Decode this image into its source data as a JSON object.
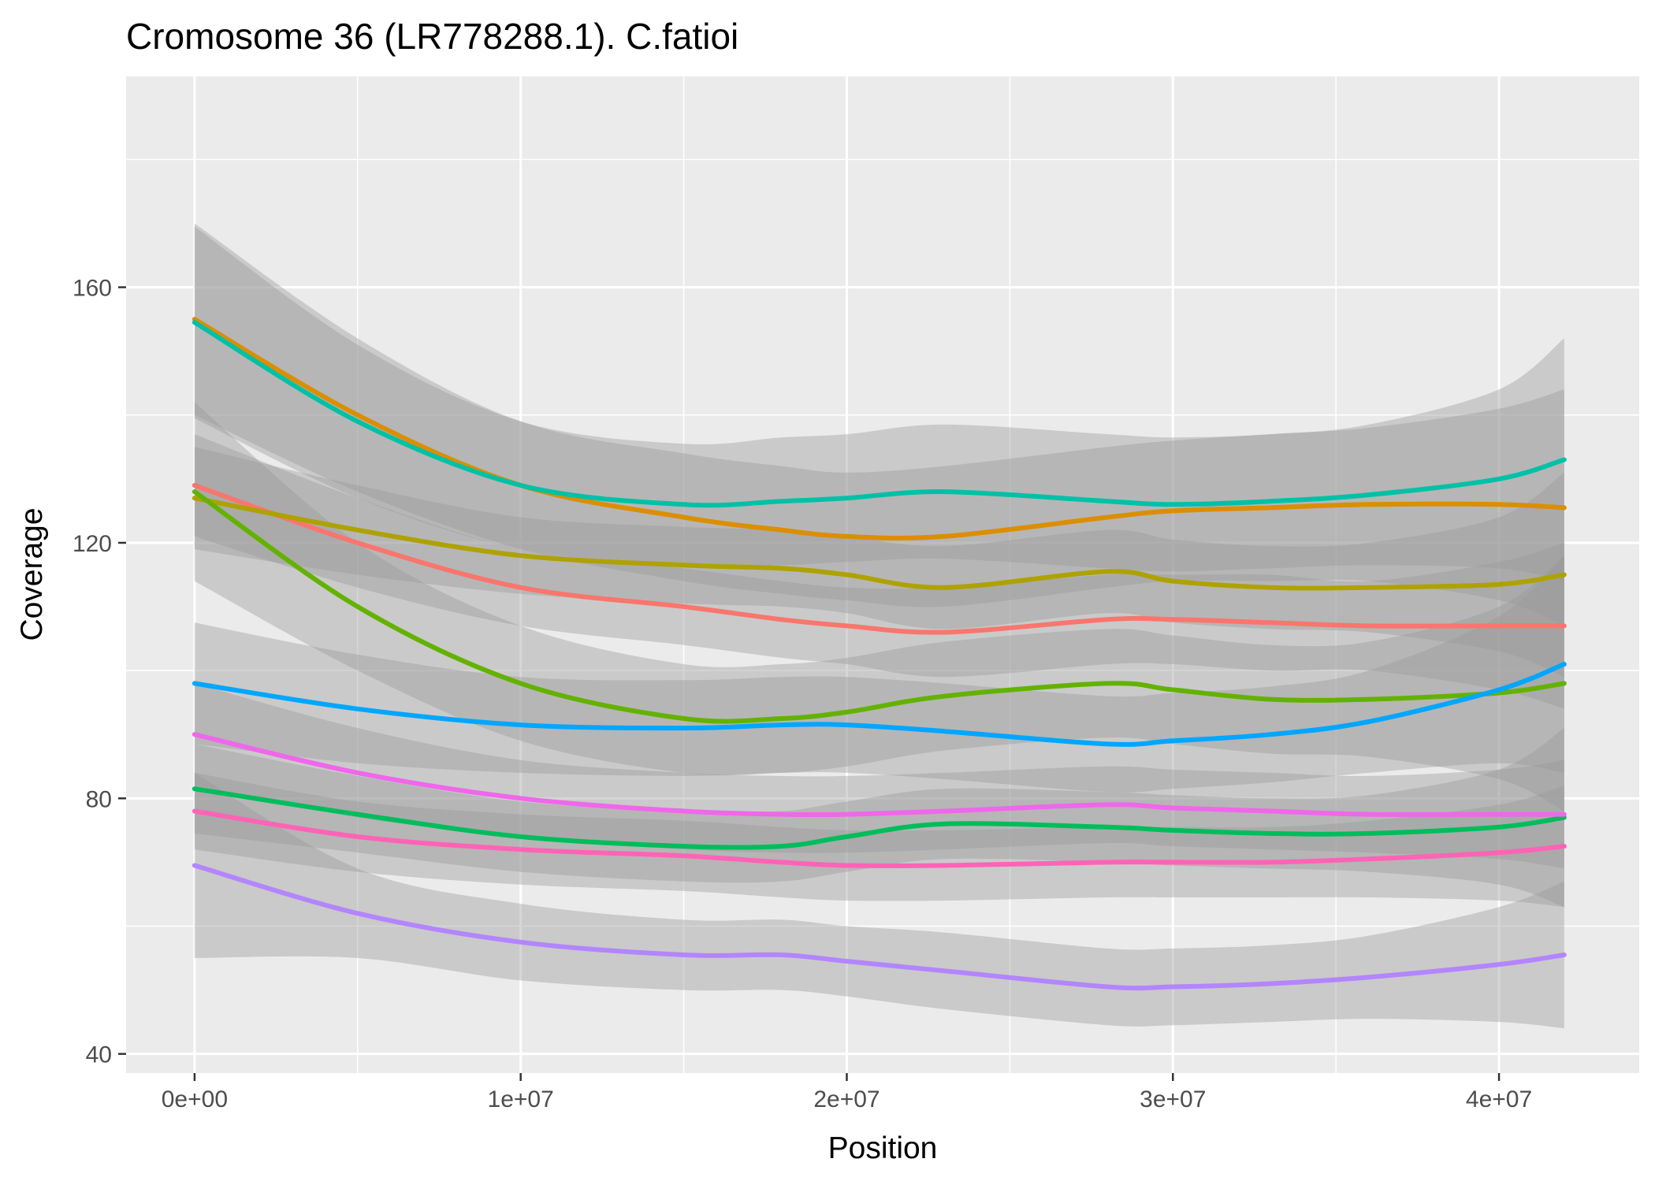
{
  "chart_data": {
    "type": "line",
    "title": "Cromosome 36 (LR778288.1). C.fatioi",
    "xlabel": "Position",
    "ylabel": "Coverage",
    "xlim": [
      -2100000,
      44300000
    ],
    "ylim": [
      37,
      193
    ],
    "x_ticks": [
      0,
      10000000,
      20000000,
      30000000,
      40000000
    ],
    "x_tick_labels": [
      "0e+00",
      "1e+07",
      "2e+07",
      "3e+07",
      "4e+07"
    ],
    "y_ticks": [
      40,
      80,
      120,
      160
    ],
    "y_tick_labels": [
      "40",
      "80",
      "120",
      "160"
    ],
    "grid": true,
    "legend": "none",
    "style": {
      "panel_bg": "#EBEBEB",
      "grid_major": "#FFFFFF",
      "ribbon": "#999999",
      "ribbon_opacity": 0.4
    },
    "x": [
      0,
      5000000,
      10000000,
      15000000,
      18000000,
      20000000,
      23000000,
      28000000,
      30000000,
      33000000,
      36000000,
      40000000,
      42000000
    ],
    "series": [
      {
        "color": "#F8766D",
        "values": [
          129,
          120,
          113,
          110,
          108,
          107,
          106,
          108,
          108,
          107.5,
          107,
          107,
          107
        ],
        "lower": [
          121,
          113,
          107,
          104,
          102,
          101,
          99,
          101,
          101,
          100,
          100,
          97,
          94
        ],
        "upper": [
          137,
          127,
          119,
          116,
          114,
          113,
          113,
          115,
          115,
          115,
          114,
          117,
          120
        ]
      },
      {
        "color": "#DB8E00",
        "values": [
          155,
          140,
          129,
          124,
          122,
          121,
          121,
          124,
          125,
          125.5,
          126,
          126,
          125.5
        ],
        "lower": [
          140,
          128,
          119,
          114,
          112,
          111,
          110,
          113,
          114,
          114,
          114,
          111,
          107
        ],
        "upper": [
          170,
          152,
          139,
          134,
          132,
          131,
          132,
          135,
          136,
          137,
          138,
          141,
          144
        ]
      },
      {
        "color": "#AEA200",
        "values": [
          127,
          122,
          118,
          116.5,
          116,
          115,
          113,
          115.5,
          114,
          113,
          113,
          113.5,
          115
        ],
        "lower": [
          119,
          115,
          112,
          110.5,
          110,
          109,
          106.5,
          109,
          107.5,
          106.5,
          106,
          103,
          99
        ],
        "upper": [
          135,
          129,
          124,
          122.5,
          122,
          121,
          119.5,
          122,
          120.5,
          119.5,
          120,
          124,
          131
        ]
      },
      {
        "color": "#64B200",
        "values": [
          128,
          110,
          98,
          92.5,
          92.5,
          93.5,
          96,
          98,
          97,
          95.5,
          95.5,
          96.5,
          98
        ],
        "lower": [
          114,
          100,
          89,
          84,
          84,
          85,
          87.5,
          89.5,
          88.5,
          87,
          86.5,
          83,
          78
        ],
        "upper": [
          142,
          120,
          107,
          101,
          101,
          102,
          104.5,
          106.5,
          105.5,
          104,
          104.5,
          110,
          118
        ]
      },
      {
        "color": "#00BD5C",
        "values": [
          81.5,
          77.5,
          74,
          72.5,
          72.5,
          74,
          76,
          75.5,
          75,
          74.5,
          74.5,
          75.5,
          77
        ],
        "lower": [
          74.5,
          71.5,
          68.5,
          67,
          67,
          68.5,
          70.5,
          70,
          69.5,
          69,
          68.5,
          66.5,
          63
        ],
        "upper": [
          88.5,
          83.5,
          79.5,
          78,
          78,
          79.5,
          81.5,
          81,
          80.5,
          80,
          80.5,
          84.5,
          91
        ]
      },
      {
        "color": "#00C1A7",
        "values": [
          154.5,
          139,
          129,
          126,
          126.5,
          127,
          128,
          126.5,
          126,
          126.5,
          127.5,
          130,
          133
        ],
        "lower": [
          139.5,
          127,
          119,
          116.5,
          116.5,
          117,
          117.5,
          116,
          115.5,
          116,
          116.5,
          116,
          114
        ],
        "upper": [
          169.5,
          151,
          139,
          135.5,
          136.5,
          137,
          138.5,
          137,
          136.5,
          137,
          138.5,
          144,
          152
        ]
      },
      {
        "color": "#00A6FF",
        "values": [
          98,
          94,
          91.5,
          91,
          91.5,
          91.5,
          90.5,
          88.5,
          89,
          90,
          92,
          97,
          101
        ],
        "lower": [
          88.5,
          85.5,
          84,
          83.5,
          84,
          84,
          83,
          81,
          81.5,
          82.5,
          84,
          85.5,
          84
        ],
        "upper": [
          107.5,
          102.5,
          99,
          98.5,
          99,
          99,
          98,
          96,
          96.5,
          97.5,
          100,
          108.5,
          118
        ]
      },
      {
        "color": "#B385FF",
        "values": [
          69.5,
          62,
          57.5,
          55.5,
          55.5,
          54.5,
          53,
          50.5,
          50.5,
          51,
          52,
          54,
          55.5
        ],
        "lower": [
          55,
          55,
          51.5,
          50,
          50,
          49,
          47,
          44.5,
          44.5,
          45,
          45.5,
          45,
          44
        ],
        "upper": [
          84,
          69,
          63.5,
          61,
          61,
          60,
          59,
          56.5,
          56.5,
          57,
          58.5,
          63,
          67
        ]
      },
      {
        "color": "#EF67EB",
        "values": [
          90,
          84,
          80,
          78,
          77.5,
          77.5,
          78,
          79,
          78.5,
          78,
          77.5,
          77.5,
          77.5
        ],
        "lower": [
          82,
          77,
          74,
          72,
          71.5,
          71.5,
          72,
          73,
          72.5,
          72,
          71.5,
          70.5,
          69
        ],
        "upper": [
          98,
          91,
          86,
          84,
          83.5,
          83.5,
          84,
          85,
          84.5,
          84,
          83.5,
          84.5,
          86
        ]
      },
      {
        "color": "#FF63B6",
        "values": [
          78,
          74,
          72,
          71,
          70,
          69.5,
          69.5,
          70,
          70,
          70,
          70.5,
          71.5,
          72.5
        ],
        "lower": [
          72,
          68.5,
          66.5,
          65.5,
          64.5,
          64,
          64,
          64.5,
          64.5,
          64.5,
          64.5,
          64,
          63
        ],
        "upper": [
          84,
          79.5,
          77.5,
          76.5,
          75.5,
          75,
          75,
          75.5,
          75.5,
          75.5,
          76.5,
          79,
          82
        ]
      }
    ]
  }
}
